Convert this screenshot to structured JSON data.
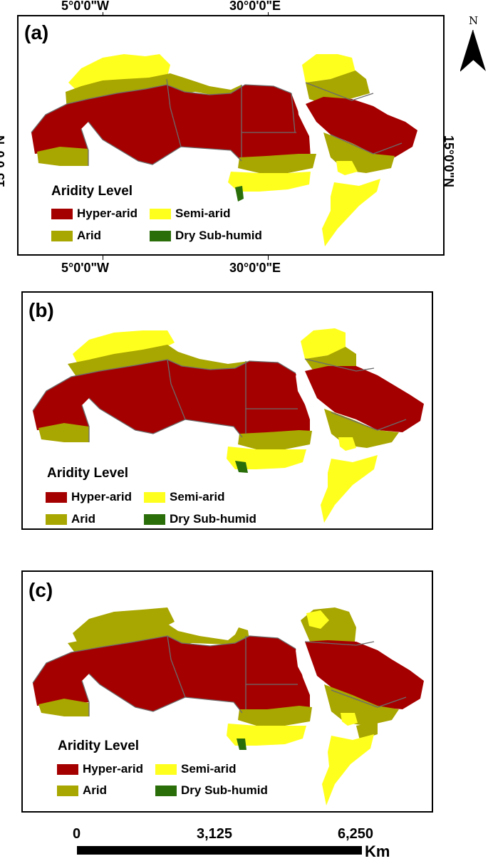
{
  "colors": {
    "hyper_arid": "#a50000",
    "arid": "#a8a600",
    "semi_arid": "#ffff1e",
    "dry_sub_humid": "#2a6e0a",
    "border": "#6b6b6b"
  },
  "north_arrow": {
    "label": "N"
  },
  "coordinates": {
    "lon_1": "5°0'0\"W",
    "lon_2": "30°0'0\"E",
    "lat": "15°0'0\"N"
  },
  "panels": [
    {
      "label": "(a)"
    },
    {
      "label": "(b)"
    },
    {
      "label": "(c)"
    }
  ],
  "legend": {
    "title": "Aridity Level",
    "items": [
      {
        "label": "Hyper-arid",
        "color": "#a50000"
      },
      {
        "label": "Semi-arid",
        "color": "#ffff1e"
      },
      {
        "label": "Arid",
        "color": "#a8a600"
      },
      {
        "label": "Dry Sub-humid",
        "color": "#2a6e0a"
      }
    ]
  },
  "scale_bar": {
    "labels": [
      "0",
      "3,125",
      "6,250"
    ],
    "unit": "Km"
  }
}
